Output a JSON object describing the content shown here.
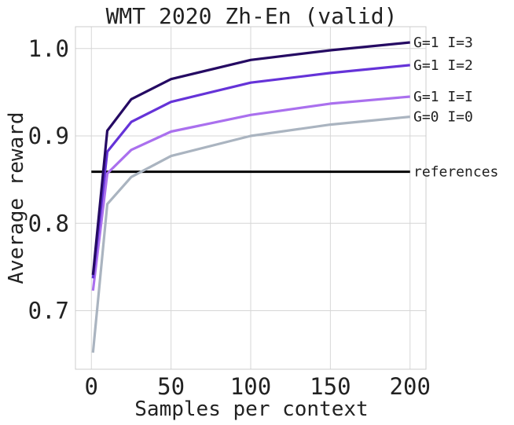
{
  "chart_data": {
    "type": "line",
    "title": "WMT 2020 Zh-En (valid)",
    "xlabel": "Samples per context",
    "ylabel": "Average reward",
    "xlim": [
      -10,
      210
    ],
    "ylim": [
      0.633,
      1.025
    ],
    "x_ticks": [
      0,
      50,
      100,
      150,
      200
    ],
    "y_ticks": [
      0.7,
      0.8,
      0.9,
      1.0
    ],
    "y_tick_labels": [
      "0.7",
      "0.8",
      "0.9",
      "1.0"
    ],
    "grid": true,
    "legend": "line-end labels",
    "x": [
      1,
      10,
      25,
      50,
      100,
      150,
      200
    ],
    "series": [
      {
        "name": "G=0 I=0",
        "color": "#aab4c0",
        "values": [
          0.652,
          0.822,
          0.853,
          0.877,
          0.9,
          0.913,
          0.922
        ]
      },
      {
        "name": "G=1 I=I",
        "color": "#aa70ee",
        "values": [
          0.723,
          0.857,
          0.884,
          0.905,
          0.924,
          0.937,
          0.945
        ]
      },
      {
        "name": "G=1 I=2",
        "color": "#6533d8",
        "values": [
          0.737,
          0.882,
          0.916,
          0.939,
          0.961,
          0.972,
          0.981
        ]
      },
      {
        "name": "G=1 I=3",
        "color": "#250a63",
        "values": [
          0.741,
          0.906,
          0.942,
          0.965,
          0.987,
          0.998,
          1.007
        ]
      }
    ],
    "reference": {
      "name": "references",
      "color": "#000000",
      "value": 0.859,
      "x_range": [
        0,
        200
      ]
    }
  }
}
